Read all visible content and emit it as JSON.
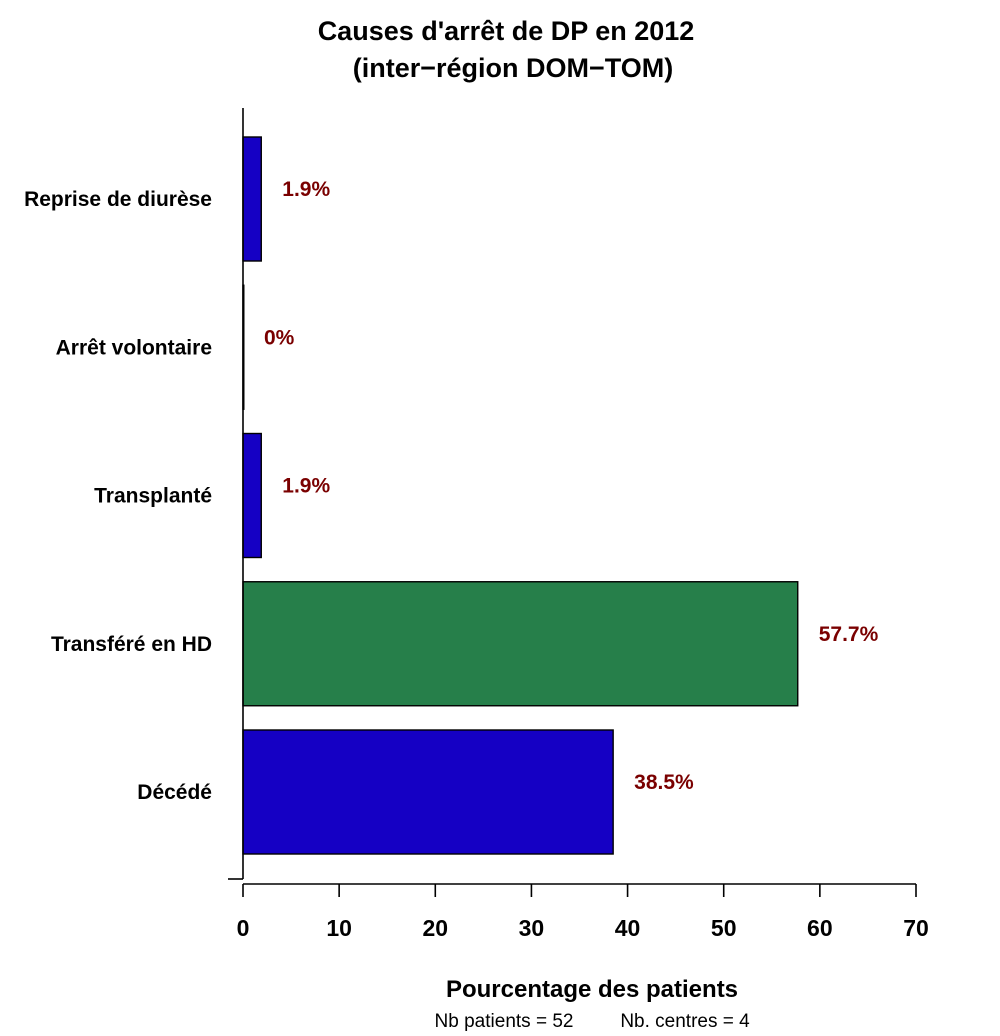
{
  "chart_data": {
    "type": "bar",
    "orientation": "horizontal",
    "title": "Causes d'arrêt de DP en 2012",
    "subtitle": "(inter−région DOM−TOM)",
    "xlabel": "Pourcentage des patients",
    "ylabel": "",
    "categories": [
      "Reprise de diurèse",
      "Arrêt volontaire",
      "Transplanté",
      "Transféré en HD",
      "Décédé"
    ],
    "values": [
      1.9,
      0,
      1.9,
      57.7,
      38.5
    ],
    "value_labels": [
      "1.9%",
      "0%",
      "1.9%",
      "57.7%",
      "38.5%"
    ],
    "bar_colors": [
      "#1500c4",
      "#1500c4",
      "#1500c4",
      "#267f4a",
      "#1500c4"
    ],
    "value_label_color": "#7a0000",
    "xlim": [
      0,
      70
    ],
    "xticks": [
      0,
      10,
      20,
      30,
      40,
      50,
      60,
      70
    ],
    "grid": false,
    "footnote": {
      "patients_label": "Nb patients =  52",
      "centres_label": "Nb. centres =  4"
    }
  }
}
